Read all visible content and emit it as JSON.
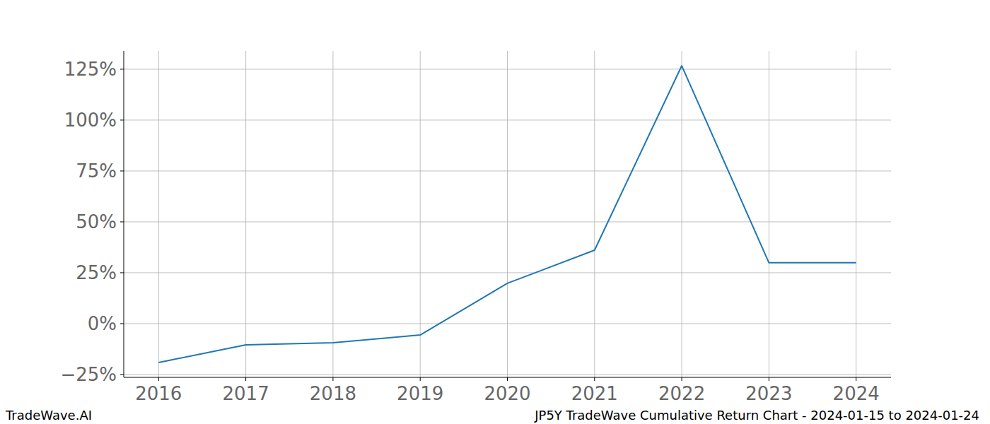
{
  "chart_data": {
    "type": "line",
    "title": "JP5Y TradeWave Cumulative Return Chart - 2024-01-15 to 2024-01-24",
    "source": "TradeWave.AI",
    "x": [
      2016,
      2017,
      2018,
      2019,
      2020,
      2021,
      2022,
      2023,
      2024
    ],
    "values": [
      -19.1,
      -10.4,
      -9.4,
      -5.6,
      19.8,
      36.1,
      126.7,
      29.9,
      29.9
    ],
    "color": "#1f77b4",
    "xlim": [
      2015.6,
      2024.4
    ],
    "xticks": [
      2016,
      2017,
      2018,
      2019,
      2020,
      2021,
      2022,
      2023,
      2024
    ],
    "ylim": [
      -26.4,
      134
    ],
    "yticks": [
      {
        "value": -25,
        "label": "−25%"
      },
      {
        "value": 0,
        "label": "0%"
      },
      {
        "value": 25,
        "label": "25%"
      },
      {
        "value": 50,
        "label": "50%"
      },
      {
        "value": 75,
        "label": "75%"
      },
      {
        "value": 100,
        "label": "100%"
      },
      {
        "value": 125,
        "label": "125%"
      }
    ],
    "grid": true
  }
}
